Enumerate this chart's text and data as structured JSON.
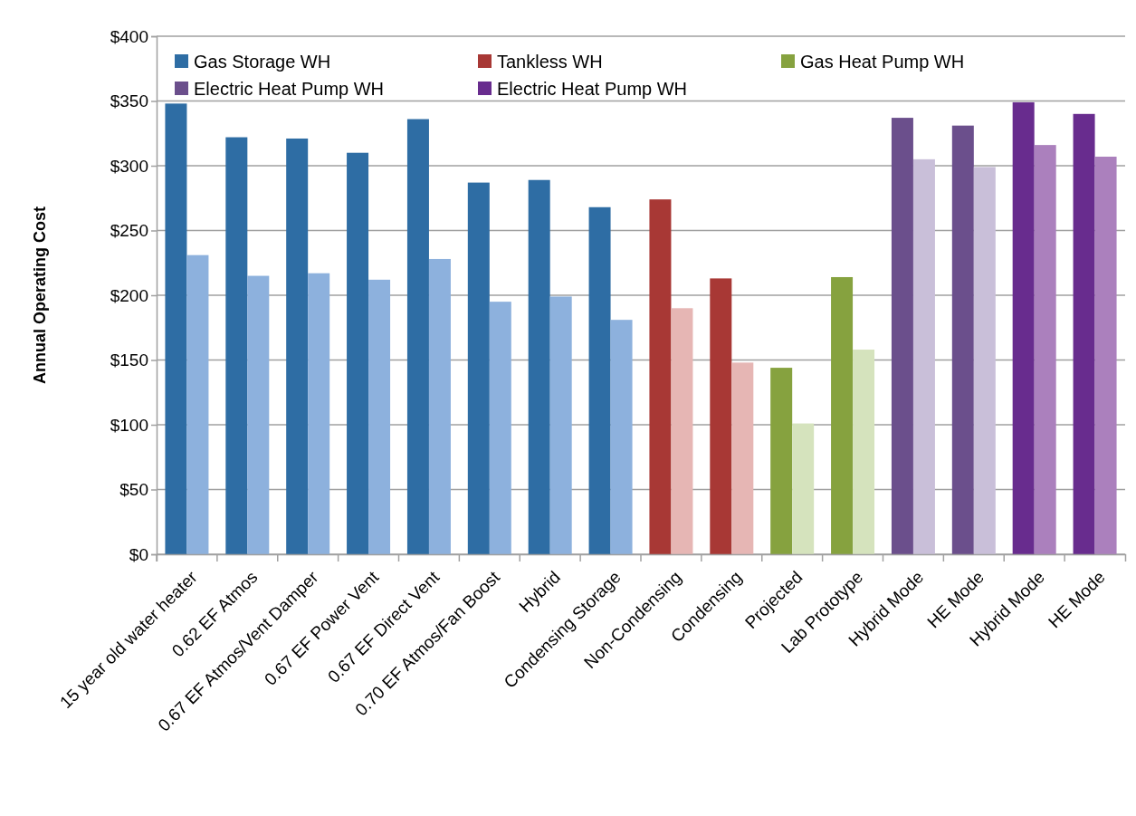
{
  "chart_data": {
    "type": "bar",
    "ylabel": "Annual Operating Cost",
    "categories": [
      "15 year old water heater",
      "0.62 EF Atmos",
      "0.67 EF Atmos/Vent Damper",
      "0.67 EF Power Vent",
      "0.67 EF Direct Vent",
      "0.70 EF Atmos/Fan Boost",
      "Hybrid",
      "Condensing Storage",
      "Non-Condensing",
      "Condensing",
      "Projected",
      "Lab Prototype",
      "Hybrid Mode",
      "HE Mode",
      "Hybrid Mode",
      "HE Mode"
    ],
    "series": [
      {
        "name": "Gas Storage WH",
        "color": "#2e6da4",
        "values": [
          348,
          322,
          321,
          310,
          336,
          287,
          289,
          268,
          null,
          null,
          null,
          null,
          null,
          null,
          null,
          null
        ]
      },
      {
        "color": "#8db1dd",
        "values": [
          231,
          215,
          217,
          212,
          228,
          195,
          199,
          181,
          null,
          null,
          null,
          null,
          null,
          null,
          null,
          null
        ]
      },
      {
        "name": "Tankless WH",
        "color": "#a83835",
        "values": [
          null,
          null,
          null,
          null,
          null,
          null,
          null,
          null,
          274,
          213,
          null,
          null,
          null,
          null,
          null,
          null
        ]
      },
      {
        "color": "#e6b6b4",
        "values": [
          null,
          null,
          null,
          null,
          null,
          null,
          null,
          null,
          190,
          148,
          null,
          null,
          null,
          null,
          null,
          null
        ]
      },
      {
        "name": "Gas Heat Pump WH",
        "color": "#86a23f",
        "values": [
          null,
          null,
          null,
          null,
          null,
          null,
          null,
          null,
          null,
          null,
          144,
          214,
          null,
          null,
          null,
          null
        ]
      },
      {
        "color": "#d5e3bd",
        "values": [
          null,
          null,
          null,
          null,
          null,
          null,
          null,
          null,
          null,
          null,
          101,
          158,
          null,
          null,
          null,
          null
        ]
      },
      {
        "name": "Electric Heat Pump WH",
        "color": "#6b4f8c",
        "values": [
          null,
          null,
          null,
          null,
          null,
          null,
          null,
          null,
          null,
          null,
          null,
          null,
          337,
          331,
          null,
          null
        ]
      },
      {
        "color": "#c9bfd9",
        "values": [
          null,
          null,
          null,
          null,
          null,
          null,
          null,
          null,
          null,
          null,
          null,
          null,
          305,
          299,
          null,
          null
        ]
      },
      {
        "name": "Electric Heat Pump WH",
        "color": "#682c8e",
        "values": [
          null,
          null,
          null,
          null,
          null,
          null,
          null,
          null,
          null,
          null,
          null,
          null,
          null,
          null,
          349,
          340
        ]
      },
      {
        "color": "#ab80bd",
        "values": [
          null,
          null,
          null,
          null,
          null,
          null,
          null,
          null,
          null,
          null,
          null,
          null,
          null,
          null,
          316,
          307
        ]
      }
    ],
    "ylim": [
      0,
      400
    ],
    "yticks": [
      {
        "value": 0,
        "label": "$0"
      },
      {
        "value": 50,
        "label": "$50"
      },
      {
        "value": 100,
        "label": "$100"
      },
      {
        "value": 150,
        "label": "$150"
      },
      {
        "value": 200,
        "label": "$200"
      },
      {
        "value": 250,
        "label": "$250"
      },
      {
        "value": 300,
        "label": "$300"
      },
      {
        "value": 350,
        "label": "$350"
      },
      {
        "value": 400,
        "label": "$400"
      }
    ],
    "grid": "y",
    "legend": "top"
  }
}
